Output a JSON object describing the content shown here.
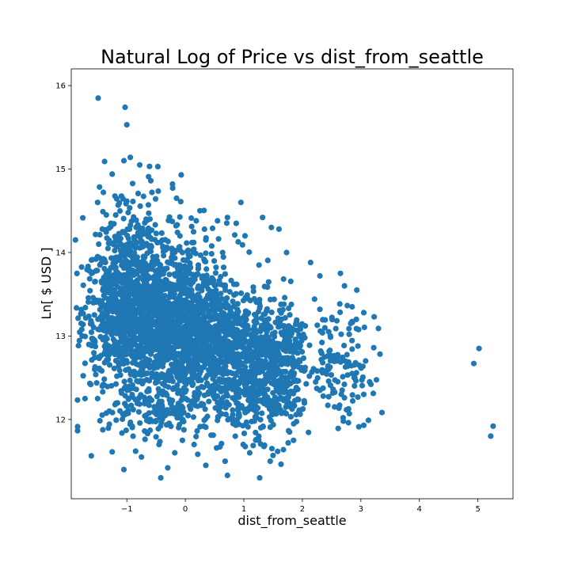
{
  "chart_data": {
    "type": "scatter",
    "title": "Natural Log of Price vs dist_from_seattle",
    "xlabel": "dist_from_seattle",
    "ylabel": "Ln[ $ USD ]",
    "xlim": [
      -1.95,
      5.6
    ],
    "ylim": [
      11.05,
      16.2
    ],
    "xticks": [
      {
        "value": -1,
        "label": "−1"
      },
      {
        "value": 0,
        "label": "0"
      },
      {
        "value": 1,
        "label": "1"
      },
      {
        "value": 2,
        "label": "2"
      },
      {
        "value": 3,
        "label": "3"
      },
      {
        "value": 4,
        "label": "4"
      },
      {
        "value": 5,
        "label": "5"
      }
    ],
    "yticks": [
      {
        "value": 12,
        "label": "12"
      },
      {
        "value": 13,
        "label": "13"
      },
      {
        "value": 14,
        "label": "14"
      },
      {
        "value": 15,
        "label": "15"
      },
      {
        "value": 16,
        "label": "16"
      }
    ],
    "grid": false,
    "marker_color": "#1f77b4",
    "series": [
      {
        "values": [
          [
            -1.49,
            15.85
          ],
          [
            -1.03,
            15.74
          ],
          [
            -1.0,
            15.53
          ],
          [
            -0.94,
            15.14
          ],
          [
            -1.38,
            15.09
          ],
          [
            -1.05,
            15.1
          ],
          [
            -0.78,
            15.05
          ],
          [
            -0.47,
            15.03
          ],
          [
            -0.07,
            14.93
          ],
          [
            -0.22,
            14.82
          ],
          [
            -0.59,
            14.86
          ],
          [
            -1.25,
            14.94
          ],
          [
            -1.4,
            14.72
          ],
          [
            -1.5,
            14.6
          ],
          [
            -0.15,
            14.65
          ],
          [
            0.25,
            14.5
          ],
          [
            0.72,
            14.42
          ],
          [
            1.32,
            14.42
          ],
          [
            1.47,
            14.3
          ],
          [
            1.6,
            14.28
          ],
          [
            0.95,
            14.6
          ],
          [
            0.55,
            14.38
          ],
          [
            0.87,
            14.35
          ],
          [
            0.35,
            14.15
          ],
          [
            1.02,
            14.2
          ],
          [
            1.73,
            14.0
          ],
          [
            1.26,
            13.85
          ],
          [
            2.14,
            13.88
          ],
          [
            2.3,
            13.72
          ],
          [
            2.65,
            13.75
          ],
          [
            2.72,
            13.6
          ],
          [
            2.93,
            13.55
          ],
          [
            2.85,
            13.35
          ],
          [
            2.3,
            13.32
          ],
          [
            2.05,
            13.12
          ],
          [
            2.45,
            13.05
          ],
          [
            3.05,
            13.28
          ],
          [
            3.3,
            13.09
          ],
          [
            2.8,
            13.02
          ],
          [
            2.95,
            12.88
          ],
          [
            3.22,
            12.86
          ],
          [
            3.08,
            12.7
          ],
          [
            2.58,
            12.7
          ],
          [
            2.2,
            12.6
          ],
          [
            2.85,
            12.55
          ],
          [
            3.15,
            12.45
          ],
          [
            3.05,
            12.3
          ],
          [
            2.68,
            12.35
          ],
          [
            2.3,
            12.35
          ],
          [
            2.55,
            12.15
          ],
          [
            2.7,
            11.98
          ],
          [
            3.05,
            11.93
          ],
          [
            5.02,
            12.85
          ],
          [
            4.93,
            12.67
          ],
          [
            5.26,
            11.92
          ],
          [
            5.22,
            11.8
          ],
          [
            1.27,
            11.3
          ],
          [
            0.72,
            11.33
          ],
          [
            1.1,
            11.6
          ],
          [
            0.68,
            11.5
          ],
          [
            0.35,
            11.45
          ],
          [
            -0.42,
            11.3
          ],
          [
            -0.3,
            11.42
          ],
          [
            -0.18,
            11.6
          ],
          [
            -1.05,
            11.4
          ],
          [
            -0.75,
            11.55
          ],
          [
            -0.85,
            11.62
          ],
          [
            -0.45,
            11.7
          ],
          [
            -0.05,
            11.75
          ],
          [
            0.15,
            11.7
          ],
          [
            1.48,
            11.65
          ],
          [
            1.85,
            11.75
          ],
          [
            1.78,
            11.85
          ],
          [
            1.45,
            11.5
          ],
          [
            1.95,
            12.1
          ],
          [
            -1.3,
            12.1
          ],
          [
            -1.5,
            12.25
          ],
          [
            -1.42,
            12.4
          ],
          [
            -1.55,
            12.6
          ],
          [
            -1.58,
            12.95
          ],
          [
            -1.6,
            13.15
          ],
          [
            -1.57,
            13.4
          ],
          [
            -1.55,
            13.65
          ],
          [
            -1.5,
            13.95
          ],
          [
            -1.48,
            14.1
          ],
          [
            -1.42,
            14.28
          ],
          [
            -1.35,
            14.45
          ]
        ]
      }
    ],
    "dense_regions": [
      {
        "cx": -1.05,
        "cy": 13.3,
        "sx": 0.35,
        "sy": 0.42,
        "n": 700
      },
      {
        "cx": -0.5,
        "cy": 13.15,
        "sx": 0.32,
        "sy": 0.42,
        "n": 650
      },
      {
        "cx": 0.05,
        "cy": 13.1,
        "sx": 0.3,
        "sy": 0.42,
        "n": 500
      },
      {
        "cx": 0.5,
        "cy": 13.0,
        "sx": 0.3,
        "sy": 0.4,
        "n": 380
      },
      {
        "cx": 1.0,
        "cy": 12.75,
        "sx": 0.25,
        "sy": 0.35,
        "n": 320
      },
      {
        "cx": 1.5,
        "cy": 12.65,
        "sx": 0.22,
        "sy": 0.38,
        "n": 320
      },
      {
        "cx": 1.85,
        "cy": 12.75,
        "sx": 0.12,
        "sy": 0.35,
        "n": 80
      },
      {
        "cx": 2.4,
        "cy": 12.8,
        "sx": 0.18,
        "sy": 0.3,
        "n": 60
      },
      {
        "cx": 2.85,
        "cy": 12.6,
        "sx": 0.16,
        "sy": 0.3,
        "n": 60
      },
      {
        "cx": -0.9,
        "cy": 14.2,
        "sx": 0.35,
        "sy": 0.3,
        "n": 120
      },
      {
        "cx": 0.0,
        "cy": 14.0,
        "sx": 0.4,
        "sy": 0.25,
        "n": 60
      },
      {
        "cx": -0.6,
        "cy": 12.1,
        "sx": 0.45,
        "sy": 0.2,
        "n": 120
      },
      {
        "cx": 0.4,
        "cy": 12.2,
        "sx": 0.45,
        "sy": 0.22,
        "n": 90
      },
      {
        "cx": 1.3,
        "cy": 12.1,
        "sx": 0.35,
        "sy": 0.22,
        "n": 70
      }
    ]
  }
}
